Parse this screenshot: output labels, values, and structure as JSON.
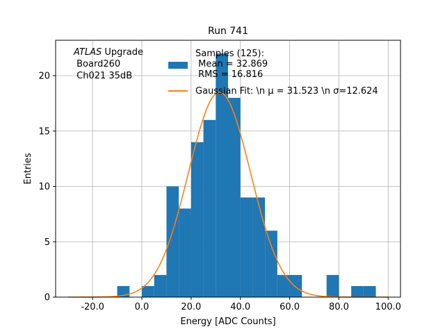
{
  "chart_data": {
    "type": "bar",
    "title": "Run 741",
    "xlabel": "Energy [ADC Counts]",
    "ylabel": "Entries",
    "xlim": [
      -35,
      105
    ],
    "ylim": [
      0,
      23.2
    ],
    "grid": true,
    "x_ticks": [
      -20,
      0,
      20,
      40,
      60,
      80,
      100
    ],
    "x_tick_labels": [
      "-20.0",
      "0.0",
      "20.0",
      "40.0",
      "60.0",
      "80.0",
      "100.0"
    ],
    "y_ticks": [
      0,
      5,
      10,
      15,
      20
    ],
    "y_tick_labels": [
      "0",
      "5",
      "10",
      "15",
      "20"
    ],
    "annotation": {
      "italic": "ATLAS",
      "line1_rest": " Upgrade",
      "line2": " Board260",
      "line3": " Ch021 35dB"
    },
    "legend": {
      "placement": "top-right",
      "histogram_lines": [
        "Samples (125):",
        " Mean = 32.869",
        " RMS = 16.816"
      ],
      "fit_label": "Gaussian Fit: \\n μ = 31.523 \\n σ=12.624"
    },
    "series": [
      {
        "kind": "histogram",
        "color": "#1f77b4",
        "bin_edges": [
          -10,
          -5,
          0,
          5,
          10,
          15,
          20,
          25,
          30,
          35,
          40,
          45,
          50,
          55,
          60,
          65,
          70,
          75,
          80,
          85,
          90,
          95
        ],
        "counts": [
          1,
          0,
          1,
          2,
          10,
          8,
          14,
          16,
          22,
          18,
          9,
          9,
          6,
          2,
          2,
          0,
          0,
          2,
          0,
          1,
          1
        ]
      },
      {
        "kind": "fit_curve",
        "color": "#ff7f0e",
        "function": "gaussian",
        "amplitude": 18.5,
        "mean": 31.523,
        "sigma": 12.624,
        "x_range": [
          -30,
          100
        ]
      }
    ]
  }
}
